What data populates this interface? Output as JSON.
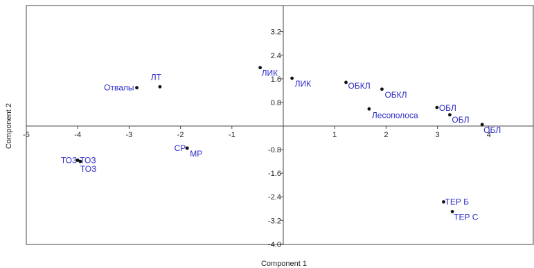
{
  "chart_data": {
    "type": "scatter",
    "title": "",
    "xlabel": "Component 1",
    "ylabel": "Component 2",
    "xlim": [
      -5,
      5
    ],
    "ylim": [
      -4.0,
      4.0
    ],
    "grid": false,
    "x_ticks": [
      -5,
      -4,
      -3,
      -2,
      -1,
      1,
      2,
      3,
      4
    ],
    "x_tick_labels": [
      "-5",
      "-4",
      "-3",
      "-2",
      "-1",
      "1",
      "2",
      "3",
      "4"
    ],
    "y_ticks": [
      3.2,
      2.4,
      1.6,
      0.8,
      -0.8,
      -1.6,
      -2.4,
      -3.2,
      -4.0
    ],
    "y_tick_labels": [
      "3.2",
      "2.4",
      "1.6",
      "0.8",
      "-0.8",
      "-1.6",
      "-2.4",
      "-3.2",
      "-4.0"
    ],
    "colors": {
      "point": "#111111",
      "label": "#2b2bc8",
      "axis": "#444444"
    },
    "points": [
      {
        "label": "Отвалы",
        "x": -2.85,
        "y": 1.3,
        "anchor": "end",
        "dx": -4,
        "dy": 4
      },
      {
        "label": "ЛТ",
        "x": -2.4,
        "y": 1.33,
        "anchor": "end",
        "dx": 2,
        "dy": -10
      },
      {
        "label": "ЛИК",
        "x": -0.45,
        "y": 1.98,
        "anchor": "start",
        "dx": 2,
        "dy": 12
      },
      {
        "label": "ЛИК",
        "x": 0.17,
        "y": 1.62,
        "anchor": "start",
        "dx": 4,
        "dy": 12
      },
      {
        "label": "ОБКЛ",
        "x": 1.22,
        "y": 1.48,
        "anchor": "start",
        "dx": 3,
        "dy": 9
      },
      {
        "label": "ОБКЛ",
        "x": 1.92,
        "y": 1.25,
        "anchor": "start",
        "dx": 4,
        "dy": 12
      },
      {
        "label": "Лесополоса",
        "x": 1.67,
        "y": 0.58,
        "anchor": "start",
        "dx": 4,
        "dy": 13
      },
      {
        "label": "ОБЛ",
        "x": 2.99,
        "y": 0.63,
        "anchor": "start",
        "dx": 3,
        "dy": 5
      },
      {
        "label": "ОБЛ",
        "x": 3.24,
        "y": 0.38,
        "anchor": "start",
        "dx": 3,
        "dy": 11
      },
      {
        "label": "ОБЛ",
        "x": 3.87,
        "y": 0.05,
        "anchor": "start",
        "dx": 2,
        "dy": 12
      },
      {
        "label": "ТОЗ",
        "x": -4.0,
        "y": -1.16,
        "anchor": "end",
        "dx": -1,
        "dy": 4
      },
      {
        "label": "ТОЗ",
        "x": -4.0,
        "y": -1.16,
        "anchor": "start",
        "dx": 3,
        "dy": 4
      },
      {
        "label": "ТОЗ",
        "x": -3.95,
        "y": -1.2,
        "anchor": "start",
        "dx": 0,
        "dy": 15
      },
      {
        "label": "СР",
        "x": -1.87,
        "y": -0.75,
        "anchor": "end",
        "dx": -2,
        "dy": 4
      },
      {
        "label": "МР",
        "x": -1.87,
        "y": -0.75,
        "anchor": "start",
        "dx": 4,
        "dy": 12
      },
      {
        "label": "ТЕР Б",
        "x": 3.12,
        "y": -2.57,
        "anchor": "start",
        "dx": 2,
        "dy": 4
      },
      {
        "label": "ТЕР С",
        "x": 3.29,
        "y": -2.9,
        "anchor": "start",
        "dx": 2,
        "dy": 12
      }
    ]
  }
}
